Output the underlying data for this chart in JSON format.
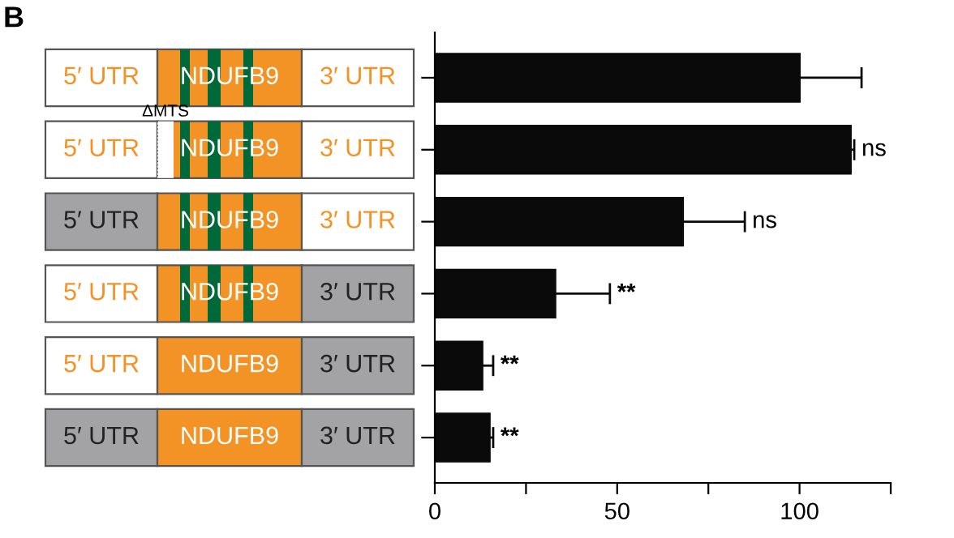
{
  "chart_data": {
    "type": "bar",
    "orientation": "horizontal",
    "categories": [
      null,
      null,
      null,
      null,
      null,
      null
    ],
    "series": [
      {
        "color": "#0a0a0a",
        "values": [
          100,
          114,
          68,
          33,
          13,
          15
        ],
        "errors": [
          [
            100,
            117
          ],
          [
            114,
            115
          ],
          [
            68,
            85
          ],
          [
            33,
            48
          ],
          [
            13,
            16
          ],
          [
            15,
            16
          ]
        ],
        "value_labels": [
          null,
          "ns",
          "ns",
          "**",
          "**",
          "**"
        ]
      }
    ],
    "xlim": [
      0,
      125
    ],
    "xticks": [
      0,
      {
        "value": 25,
        "label": null
      },
      50,
      {
        "value": 75,
        "label": null
      },
      100,
      {
        "value": 125,
        "label": null
      }
    ],
    "annotations": [
      "B",
      "5′ UTR",
      "NDUFB9",
      "3′ UTR",
      "5′ UTR",
      "NDUFB9",
      "3′ UTR",
      "5′ UTR",
      "NDUFB9",
      "3′ UTR",
      "5′ UTR",
      "NDUFB9",
      "3′ UTR",
      "5′ UTR",
      "NDUFB9",
      "3′ UTR",
      "5′ UTR",
      "NDUFB9",
      "3′ UTR",
      "ΔMTS"
    ]
  }
}
